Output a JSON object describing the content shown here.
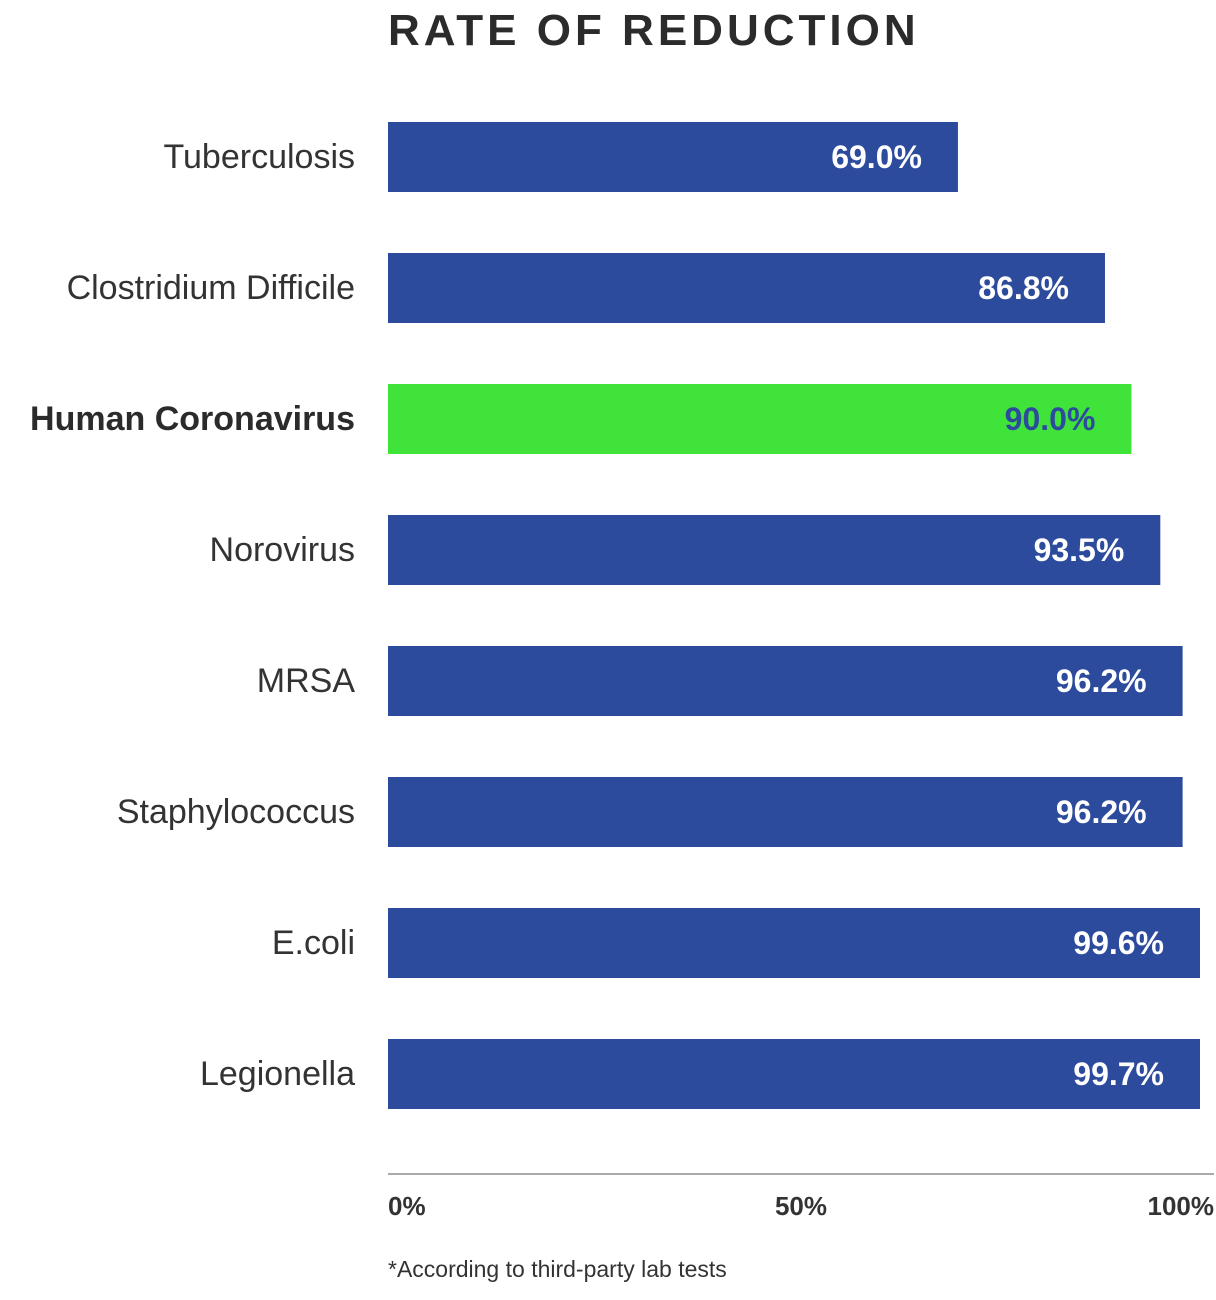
{
  "chart_data": {
    "type": "bar",
    "orientation": "horizontal",
    "title": "RATE OF REDUCTION",
    "categories": [
      "Tuberculosis",
      "Clostridium Difficile",
      "Human Coronavirus",
      "Norovirus",
      "MRSA",
      "Staphylococcus",
      "E.coli",
      "Legionella"
    ],
    "values": [
      69.0,
      86.8,
      90.0,
      93.5,
      96.2,
      96.2,
      99.6,
      99.7
    ],
    "value_labels": [
      "69.0%",
      "86.8%",
      "90.0%",
      "93.5%",
      "96.2%",
      "96.2%",
      "99.6%",
      "99.7%"
    ],
    "highlighted_category": "Human Coronavirus",
    "xlim": [
      0,
      100
    ],
    "x_ticks": [
      0,
      50,
      100
    ],
    "x_tick_labels": [
      "0%",
      "50%",
      "100%"
    ],
    "grid": false,
    "colors": {
      "bar": "#2d4b9c",
      "highlight_bar": "#40e33a",
      "value_label": "#ffffff",
      "highlight_value_label": "#2d4b9c",
      "axis": "#aaaaaa"
    }
  },
  "footnote": "*According to third-party lab tests"
}
